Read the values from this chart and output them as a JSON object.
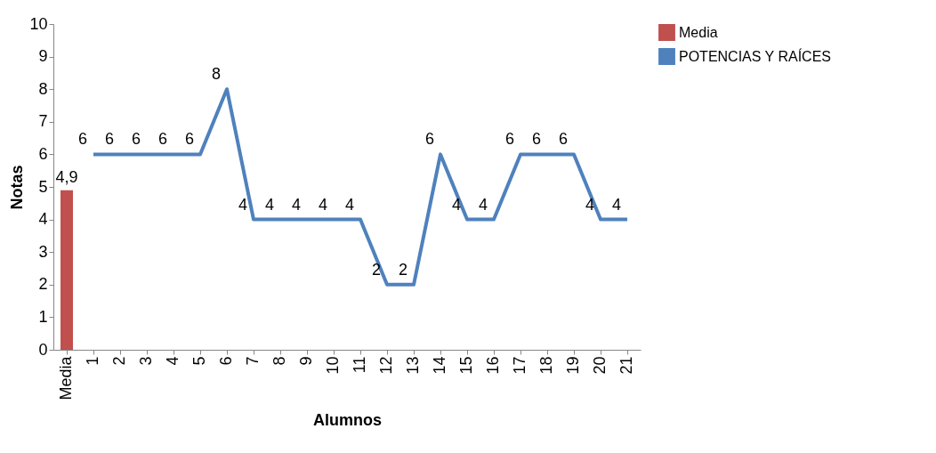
{
  "chart_data": {
    "type": "bar",
    "xlabel": "Alumnos",
    "ylabel": "Notas",
    "categories": [
      "Media",
      "1",
      "2",
      "3",
      "4",
      "5",
      "6",
      "7",
      "8",
      "9",
      "10",
      "11",
      "12",
      "13",
      "14",
      "15",
      "16",
      "17",
      "18",
      "19",
      "20",
      "21"
    ],
    "series": [
      {
        "name": "Media",
        "color": "#c0504d",
        "values": [
          4.9,
          null,
          null,
          null,
          null,
          null,
          null,
          null,
          null,
          null,
          null,
          null,
          null,
          null,
          null,
          null,
          null,
          null,
          null,
          null,
          null,
          null
        ],
        "value_labels": [
          "4,9",
          null,
          null,
          null,
          null,
          null,
          null,
          null,
          null,
          null,
          null,
          null,
          null,
          null,
          null,
          null,
          null,
          null,
          null,
          null,
          null,
          null
        ]
      },
      {
        "name": "POTENCIAS Y RAÍCES",
        "type": "line",
        "color": "#4f81bd",
        "values": [
          null,
          6,
          6,
          6,
          6,
          6,
          8,
          4,
          4,
          4,
          4,
          4,
          2,
          2,
          6,
          4,
          4,
          6,
          6,
          6,
          4,
          4
        ],
        "value_labels": [
          null,
          "6",
          "6",
          "6",
          "6",
          "6",
          "8",
          "4",
          "4",
          "4",
          "4",
          "4",
          "2",
          "2",
          "6",
          "4",
          "4",
          "6",
          "6",
          "6",
          "4",
          "4"
        ]
      }
    ],
    "ylim": [
      0,
      10
    ],
    "yticks": [
      0,
      1,
      2,
      3,
      4,
      5,
      6,
      7,
      8,
      9,
      10
    ],
    "grid": false,
    "legend": "right",
    "marker": "none",
    "line_style": "solid"
  }
}
